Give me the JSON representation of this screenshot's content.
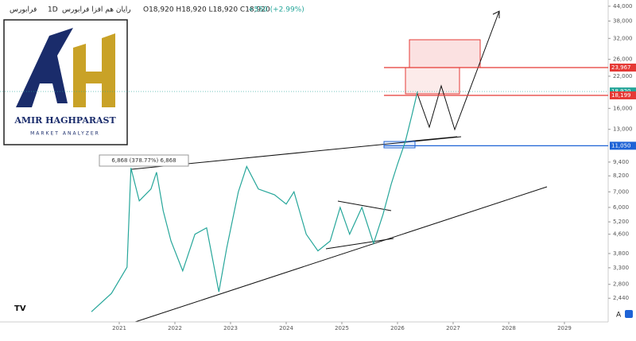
{
  "header": {
    "symbol": "فرابورس",
    "interval": "1D",
    "name": "رایان هم افزا فرابورس",
    "ohlc": "O18,920 H18,920 L18,920 C18,920",
    "change": "+550 (+2.99%)"
  },
  "logo": {
    "name": "AMIR HAGHPARAST",
    "tagline": "MARKET ANALYZER"
  },
  "chart_data": {
    "type": "line",
    "color": "#26a69a",
    "log_y": true,
    "annotation": "6,868 (378.77%) 6,868",
    "x": [
      2020.5,
      2020.86,
      2021.14,
      2021.21,
      2021.36,
      2021.57,
      2021.67,
      2021.79,
      2021.93,
      2022.14,
      2022.36,
      2022.57,
      2022.79,
      2022.93,
      2023.14,
      2023.29,
      2023.5,
      2023.79,
      2024.0,
      2024.14,
      2024.36,
      2024.57,
      2024.79,
      2024.97,
      2025.14,
      2025.36,
      2025.57,
      2025.74,
      2025.89,
      2026.0,
      2026.14,
      2026.26,
      2026.36
    ],
    "values": [
      2135,
      2560,
      3320,
      8868,
      6400,
      7200,
      8500,
      5800,
      4300,
      3200,
      4600,
      4900,
      2600,
      4000,
      7000,
      9000,
      7200,
      6800,
      6200,
      7000,
      4600,
      3900,
      4300,
      6000,
      4600,
      6000,
      4200,
      5600,
      7600,
      9200,
      11500,
      15000,
      18920
    ],
    "xlim": [
      2018.857,
      2029.786
    ],
    "xticks": [
      2021,
      2022,
      2023,
      2024,
      2025,
      2026,
      2027,
      2028,
      2029
    ],
    "ylim": [
      1930,
      46800
    ],
    "yticks": [
      {
        "value": 44000,
        "label": "44,000"
      },
      {
        "value": 38000,
        "label": "38,000"
      },
      {
        "value": 32000,
        "label": "32,000"
      },
      {
        "value": 26000,
        "label": "26,000"
      },
      {
        "value": 22000,
        "label": "22,000"
      },
      {
        "value": 16000,
        "label": "16,000"
      },
      {
        "value": 13000,
        "label": "13,000"
      },
      {
        "value": 9400,
        "label": "9,400"
      },
      {
        "value": 8200,
        "label": "8,200"
      },
      {
        "value": 7000,
        "label": "7,000"
      },
      {
        "value": 6000,
        "label": "6,000"
      },
      {
        "value": 5200,
        "label": "5,200"
      },
      {
        "value": 4600,
        "label": "4,600"
      },
      {
        "value": 3800,
        "label": "3,800"
      },
      {
        "value": 3300,
        "label": "3,300"
      },
      {
        "value": 2800,
        "label": "2,800"
      },
      {
        "value": 2440,
        "label": "2,440"
      }
    ],
    "levels": [
      {
        "value": 23967,
        "label": "23,967",
        "color": "#e53935"
      },
      {
        "value": 18920,
        "label": "18,920",
        "color": "#26a69a"
      },
      {
        "value": 18199,
        "label": "18,199",
        "color": "#e53935"
      },
      {
        "value": 11050,
        "label": "11,050",
        "color": "#1e63d6"
      }
    ]
  }
}
